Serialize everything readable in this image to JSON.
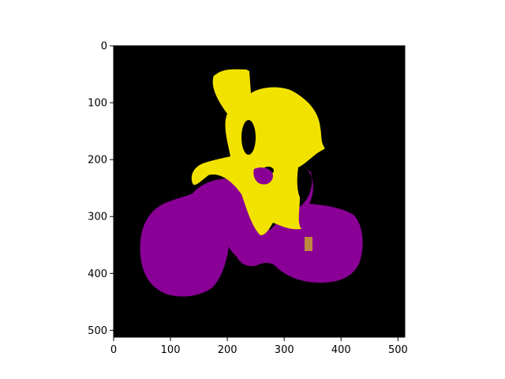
{
  "figure": {
    "kind": "segmentation-mask",
    "colors": {
      "background": "#000000",
      "class_a": "#f2e200",
      "class_b": "#8a0096",
      "frame": "#ffffff",
      "axis": "#000000"
    }
  },
  "axes": {
    "x_range": [
      0,
      512
    ],
    "y_range": [
      0,
      512
    ],
    "x_ticks": [
      {
        "value": 0,
        "label": "0"
      },
      {
        "value": 100,
        "label": "100"
      },
      {
        "value": 200,
        "label": "200"
      },
      {
        "value": 300,
        "label": "300"
      },
      {
        "value": 400,
        "label": "400"
      },
      {
        "value": 500,
        "label": "500"
      }
    ],
    "y_ticks": [
      {
        "value": 0,
        "label": "0"
      },
      {
        "value": 100,
        "label": "100"
      },
      {
        "value": 200,
        "label": "200"
      },
      {
        "value": 300,
        "label": "300"
      },
      {
        "value": 400,
        "label": "400"
      },
      {
        "value": 500,
        "label": "500"
      }
    ]
  }
}
